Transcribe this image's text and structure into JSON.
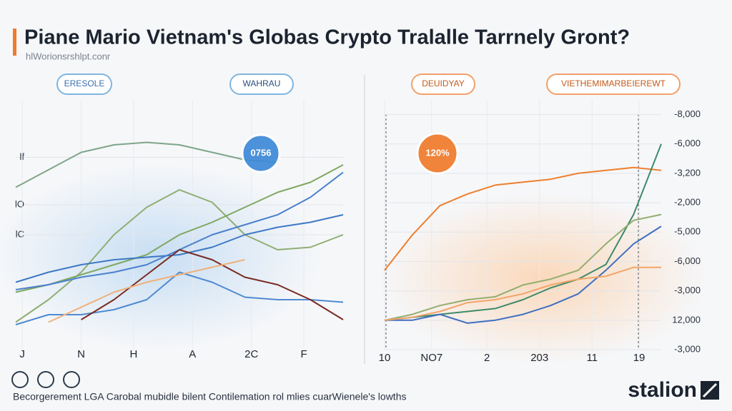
{
  "title": "Piane Mario Vietnam's Globas Crypto Tralalle Tarrnely Gront?",
  "subtitle": "hlWorionsrshlpt.conr",
  "footer": "Becorgerement LGA Carobal mubidle bilent Contilemation rol mlies cuarWienele's lowths",
  "logo": "stalion",
  "chart_data": [
    {
      "type": "line",
      "annotations": [
        "ERESOLE",
        "WAHRAU",
        "0756"
      ],
      "x": [
        0,
        1,
        2,
        3,
        4,
        5,
        6,
        7,
        8,
        9,
        10
      ],
      "xlim": [
        0,
        10
      ],
      "xticks": [
        {
          "value": 0.2,
          "label": "J"
        },
        {
          "value": 2.0,
          "label": "N"
        },
        {
          "value": 3.6,
          "label": "H"
        },
        {
          "value": 5.4,
          "label": "A"
        },
        {
          "value": 7.2,
          "label": "2C"
        },
        {
          "value": 8.8,
          "label": "F"
        }
      ],
      "ylim": [
        0,
        100
      ],
      "yticks": [
        {
          "value": 77,
          "label": "lf"
        },
        {
          "value": 58,
          "label": "lO"
        },
        {
          "value": 46,
          "label": "lC"
        }
      ],
      "grid": true,
      "series": [
        {
          "color": "#7fa58a",
          "values": [
            65,
            72,
            79,
            82,
            83,
            82,
            79,
            76,
            75,
            null,
            null
          ]
        },
        {
          "color": "#8fae72",
          "values": [
            11,
            20,
            31,
            46,
            57,
            64,
            59,
            46,
            40,
            41,
            46
          ]
        },
        {
          "color": "#7fa860",
          "values": [
            23,
            26,
            30,
            34,
            38,
            46,
            51,
            57,
            63,
            67,
            74
          ]
        },
        {
          "color": "#3d78c4",
          "values": [
            27,
            31,
            34,
            36,
            37,
            38,
            41,
            46,
            49,
            51,
            54
          ]
        },
        {
          "color": "#4a80cc",
          "values": [
            24,
            26,
            29,
            31,
            34,
            40,
            46,
            50,
            54,
            61,
            71
          ]
        },
        {
          "color": "#4f8ad0",
          "values": [
            10,
            14,
            14,
            16,
            20,
            31,
            27,
            21,
            20,
            20,
            19
          ]
        },
        {
          "color": "#7a2a22",
          "values": [
            null,
            null,
            12,
            20,
            30,
            40,
            36,
            29,
            26,
            20,
            12
          ]
        },
        {
          "color": "#f0b07a",
          "values": [
            null,
            11,
            17,
            23,
            27,
            30,
            33,
            36,
            null,
            null,
            null
          ]
        }
      ]
    },
    {
      "type": "line",
      "annotations": [
        "DEUIDYAY",
        "VIETHEMIMARBEIEREWT",
        "120%"
      ],
      "x": [
        0,
        1,
        2,
        3,
        4,
        5,
        6,
        7,
        8,
        9,
        10
      ],
      "xlim": [
        0,
        10
      ],
      "xticks": [
        {
          "value": 0,
          "label": "10"
        },
        {
          "value": 1.7,
          "label": "NO7"
        },
        {
          "value": 3.7,
          "label": "2"
        },
        {
          "value": 5.6,
          "label": "203"
        },
        {
          "value": 7.5,
          "label": "11"
        },
        {
          "value": 9.2,
          "label": "19"
        }
      ],
      "ylim": [
        0,
        8.5
      ],
      "yticks": [
        {
          "value": 8,
          "label": "-8,000"
        },
        {
          "value": 7,
          "label": "-6,000"
        },
        {
          "value": 6,
          "label": "-3,200"
        },
        {
          "value": 5,
          "label": "-2,000"
        },
        {
          "value": 4,
          "label": "-5,000"
        },
        {
          "value": 3,
          "label": "-6,000"
        },
        {
          "value": 2,
          "label": "-3,000"
        },
        {
          "value": 1,
          "label": "12,000"
        },
        {
          "value": 0,
          "label": "-3,000"
        }
      ],
      "grid": true,
      "series": [
        {
          "color": "#ee7f2e",
          "values": [
            2.7,
            3.9,
            4.9,
            5.3,
            5.6,
            5.7,
            5.8,
            6.0,
            6.1,
            6.2,
            6.1
          ]
        },
        {
          "color": "#3f8a6a",
          "values": [
            1.0,
            1.1,
            1.2,
            1.3,
            1.4,
            1.7,
            2.1,
            2.4,
            2.9,
            4.6,
            7.0
          ]
        },
        {
          "color": "#3e6fc0",
          "values": [
            1.0,
            1.0,
            1.2,
            0.9,
            1.0,
            1.2,
            1.5,
            1.9,
            2.7,
            3.6,
            4.2
          ]
        },
        {
          "color": "#93ad6e",
          "values": [
            1.0,
            1.2,
            1.5,
            1.7,
            1.8,
            2.2,
            2.4,
            2.7,
            3.6,
            4.4,
            4.6
          ]
        },
        {
          "color": "#f3a468",
          "values": [
            1.0,
            1.1,
            1.3,
            1.6,
            1.7,
            1.9,
            2.2,
            2.4,
            2.5,
            2.8,
            2.8
          ]
        }
      ]
    }
  ]
}
